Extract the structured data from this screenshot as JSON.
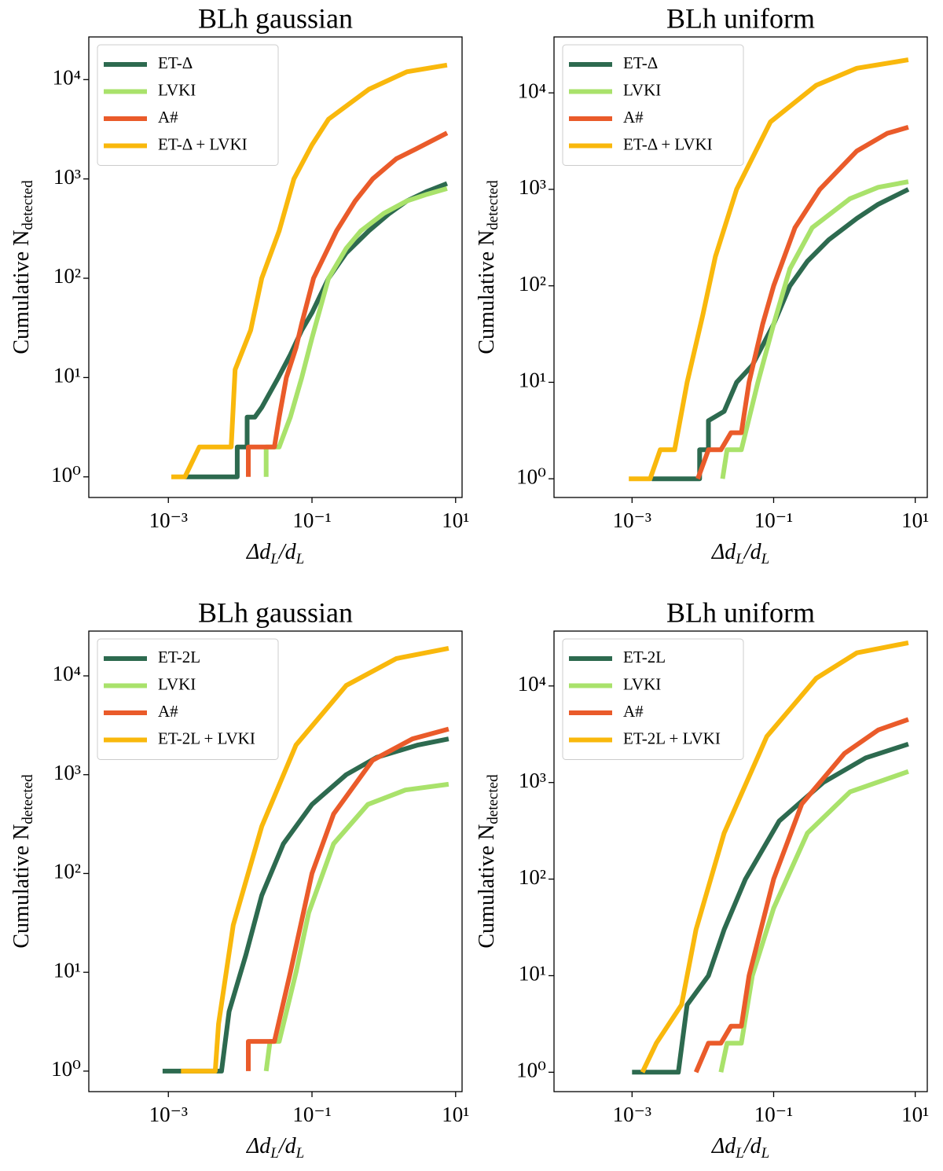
{
  "chart_data": [
    {
      "type": "line",
      "title": "BLh gaussian",
      "xlabel": [
        "Δd",
        "L",
        "/d",
        "L"
      ],
      "ylabel": [
        "Cumulative N",
        "detected"
      ],
      "xscale": "log",
      "yscale": "log",
      "xlim": [
        7.8e-05,
        12.3
      ],
      "ylim": [
        0.62,
        26900
      ],
      "xticks": [
        {
          "value": 0.001,
          "label": "10⁻³"
        },
        {
          "value": 0.1,
          "label": "10⁻¹"
        },
        {
          "value": 10,
          "label": "10¹"
        }
      ],
      "yticks": [
        {
          "value": 1,
          "label": "10⁰"
        },
        {
          "value": 10,
          "label": "10¹"
        },
        {
          "value": 100,
          "label": "10²"
        },
        {
          "value": 1000,
          "label": "10³"
        },
        {
          "value": 10000,
          "label": "10⁴"
        }
      ],
      "legend": "upper left",
      "series": [
        {
          "name": "ET-Δ",
          "color": "#2d6a4f",
          "x": [
            0.0017,
            0.0091,
            0.0091,
            0.0125,
            0.0125,
            0.016,
            0.02,
            0.034,
            0.05,
            0.072,
            0.1,
            0.17,
            0.3,
            0.62,
            1.2,
            2.1,
            4,
            7.6
          ],
          "values": [
            1,
            1,
            2,
            2,
            4,
            4,
            5,
            10,
            17,
            30,
            45,
            100,
            180,
            300,
            450,
            600,
            750,
            900
          ]
        },
        {
          "name": "LVKI",
          "color": "#a9e26b",
          "x": [
            0.023,
            0.023,
            0.035,
            0.05,
            0.072,
            0.1,
            0.17,
            0.3,
            0.48,
            1,
            2.1,
            4,
            7.6
          ],
          "values": [
            1,
            2,
            2,
            4,
            10,
            25,
            100,
            200,
            300,
            450,
            600,
            700,
            800
          ]
        },
        {
          "name": "A#",
          "color": "#ea5b2a",
          "x": [
            0.013,
            0.013,
            0.03,
            0.035,
            0.044,
            0.06,
            0.072,
            0.105,
            0.22,
            0.4,
            0.7,
            1.5,
            2.8,
            7.6
          ],
          "values": [
            1,
            2,
            2,
            4,
            10,
            20,
            35,
            100,
            300,
            600,
            1000,
            1600,
            2000,
            2900
          ]
        },
        {
          "name": "ET-Δ + LVKI",
          "color": "#f9b80c",
          "x": [
            0.0011,
            0.0017,
            0.0027,
            0.0075,
            0.0085,
            0.014,
            0.02,
            0.035,
            0.056,
            0.1,
            0.17,
            0.62,
            2.1,
            7.6
          ],
          "values": [
            1,
            1,
            2,
            2,
            12,
            30,
            100,
            300,
            1000,
            2200,
            4000,
            8000,
            12000,
            14000
          ]
        }
      ]
    },
    {
      "type": "line",
      "title": "BLh uniform",
      "xlabel": [
        "Δd",
        "L",
        "/d",
        "L"
      ],
      "ylabel": [
        "Cumulative N",
        "detected"
      ],
      "xscale": "log",
      "yscale": "log",
      "xlim": [
        7.9e-05,
        14.8
      ],
      "ylim": [
        0.64,
        38000
      ],
      "xticks": [
        {
          "value": 0.001,
          "label": "10⁻³"
        },
        {
          "value": 0.1,
          "label": "10⁻¹"
        },
        {
          "value": 10,
          "label": "10¹"
        }
      ],
      "yticks": [
        {
          "value": 1,
          "label": "10⁰"
        },
        {
          "value": 10,
          "label": "10¹"
        },
        {
          "value": 100,
          "label": "10²"
        },
        {
          "value": 1000,
          "label": "10³"
        },
        {
          "value": 10000,
          "label": "10⁴"
        }
      ],
      "legend": "upper left",
      "series": [
        {
          "name": "ET-Δ",
          "color": "#2d6a4f",
          "x": [
            0.0019,
            0.009,
            0.009,
            0.012,
            0.012,
            0.02,
            0.03,
            0.05,
            0.1,
            0.17,
            0.3,
            0.6,
            1.5,
            3,
            8
          ],
          "values": [
            1,
            1,
            2,
            2,
            4,
            5,
            10,
            15,
            40,
            100,
            180,
            300,
            500,
            700,
            1000
          ]
        },
        {
          "name": "LVKI",
          "color": "#a9e26b",
          "x": [
            0.019,
            0.022,
            0.035,
            0.06,
            0.1,
            0.17,
            0.35,
            1.2,
            3,
            8
          ],
          "values": [
            1,
            2,
            2,
            10,
            40,
            150,
            400,
            800,
            1050,
            1200
          ]
        },
        {
          "name": "A#",
          "color": "#ea5b2a",
          "x": [
            0.0085,
            0.012,
            0.018,
            0.025,
            0.035,
            0.045,
            0.07,
            0.1,
            0.2,
            0.45,
            1.5,
            4,
            8
          ],
          "values": [
            1,
            2,
            2,
            3,
            3,
            10,
            40,
            100,
            400,
            1000,
            2500,
            3800,
            4400
          ]
        },
        {
          "name": "ET-Δ + LVKI",
          "color": "#f9b80c",
          "x": [
            0.0009,
            0.0018,
            0.0025,
            0.004,
            0.006,
            0.01,
            0.015,
            0.03,
            0.09,
            0.4,
            1.5,
            8
          ],
          "values": [
            1,
            1,
            2,
            2,
            10,
            50,
            200,
            1000,
            5000,
            12000,
            18000,
            22000
          ]
        }
      ]
    },
    {
      "type": "line",
      "title": "BLh gaussian",
      "xlabel": [
        "Δd",
        "L",
        "/d",
        "L"
      ],
      "ylabel": [
        "Cumulative N",
        "detected"
      ],
      "xscale": "log",
      "yscale": "log",
      "xlim": [
        7.8e-05,
        12.3
      ],
      "ylim": [
        0.62,
        28400
      ],
      "xticks": [
        {
          "value": 0.001,
          "label": "10⁻³"
        },
        {
          "value": 0.1,
          "label": "10⁻¹"
        },
        {
          "value": 10,
          "label": "10¹"
        }
      ],
      "yticks": [
        {
          "value": 1,
          "label": "10⁰"
        },
        {
          "value": 10,
          "label": "10¹"
        },
        {
          "value": 100,
          "label": "10²"
        },
        {
          "value": 1000,
          "label": "10³"
        },
        {
          "value": 10000,
          "label": "10⁴"
        }
      ],
      "legend": "upper left",
      "series": [
        {
          "name": "ET-2L",
          "color": "#2d6a4f",
          "x": [
            0.00083,
            0.0055,
            0.007,
            0.012,
            0.02,
            0.04,
            0.1,
            0.3,
            0.8,
            3,
            8
          ],
          "values": [
            1,
            1,
            4,
            15,
            60,
            200,
            500,
            1000,
            1500,
            2000,
            2300
          ]
        },
        {
          "name": "LVKI",
          "color": "#a9e26b",
          "x": [
            0.023,
            0.026,
            0.035,
            0.06,
            0.09,
            0.2,
            0.6,
            2,
            8
          ],
          "values": [
            1,
            2,
            2,
            10,
            40,
            200,
            500,
            700,
            800
          ]
        },
        {
          "name": "A#",
          "color": "#ea5b2a",
          "x": [
            0.013,
            0.013,
            0.03,
            0.05,
            0.1,
            0.2,
            0.7,
            2.5,
            8
          ],
          "values": [
            1,
            2,
            2,
            10,
            100,
            400,
            1400,
            2300,
            2900
          ]
        },
        {
          "name": "ET-2L + LVKI",
          "color": "#f9b80c",
          "x": [
            0.0015,
            0.0045,
            0.005,
            0.008,
            0.02,
            0.06,
            0.3,
            1.5,
            8
          ],
          "values": [
            1,
            1,
            3,
            30,
            300,
            2000,
            8000,
            15000,
            19000
          ]
        }
      ]
    },
    {
      "type": "line",
      "title": "BLh uniform",
      "xlabel": [
        "Δd",
        "L",
        "/d",
        "L"
      ],
      "ylabel": [
        "Cumulative N",
        "detected"
      ],
      "xscale": "log",
      "yscale": "log",
      "xlim": [
        7.9e-05,
        14.8
      ],
      "ylim": [
        0.63,
        37000
      ],
      "xticks": [
        {
          "value": 0.001,
          "label": "10⁻³"
        },
        {
          "value": 0.1,
          "label": "10⁻¹"
        },
        {
          "value": 10,
          "label": "10¹"
        }
      ],
      "yticks": [
        {
          "value": 1,
          "label": "10⁰"
        },
        {
          "value": 10,
          "label": "10¹"
        },
        {
          "value": 100,
          "label": "10²"
        },
        {
          "value": 1000,
          "label": "10³"
        },
        {
          "value": 10000,
          "label": "10⁴"
        }
      ],
      "legend": "upper left",
      "series": [
        {
          "name": "ET-2L",
          "color": "#2d6a4f",
          "x": [
            0.001,
            0.0045,
            0.006,
            0.012,
            0.02,
            0.04,
            0.12,
            0.5,
            2,
            8
          ],
          "values": [
            1,
            1,
            5,
            10,
            30,
            100,
            400,
            1000,
            1800,
            2500
          ]
        },
        {
          "name": "LVKI",
          "color": "#a9e26b",
          "x": [
            0.018,
            0.022,
            0.035,
            0.05,
            0.1,
            0.3,
            1.2,
            8
          ],
          "values": [
            1,
            2,
            2,
            10,
            50,
            300,
            800,
            1300
          ]
        },
        {
          "name": "A#",
          "color": "#ea5b2a",
          "x": [
            0.008,
            0.012,
            0.018,
            0.025,
            0.035,
            0.045,
            0.1,
            0.25,
            1,
            3,
            8
          ],
          "values": [
            1,
            2,
            2,
            3,
            3,
            10,
            100,
            600,
            2000,
            3500,
            4500
          ]
        },
        {
          "name": "ET-2L + LVKI",
          "color": "#f9b80c",
          "x": [
            0.0014,
            0.0022,
            0.005,
            0.008,
            0.02,
            0.08,
            0.4,
            1.5,
            8
          ],
          "values": [
            1,
            2,
            5,
            30,
            300,
            3000,
            12000,
            22000,
            28000
          ]
        }
      ]
    }
  ]
}
